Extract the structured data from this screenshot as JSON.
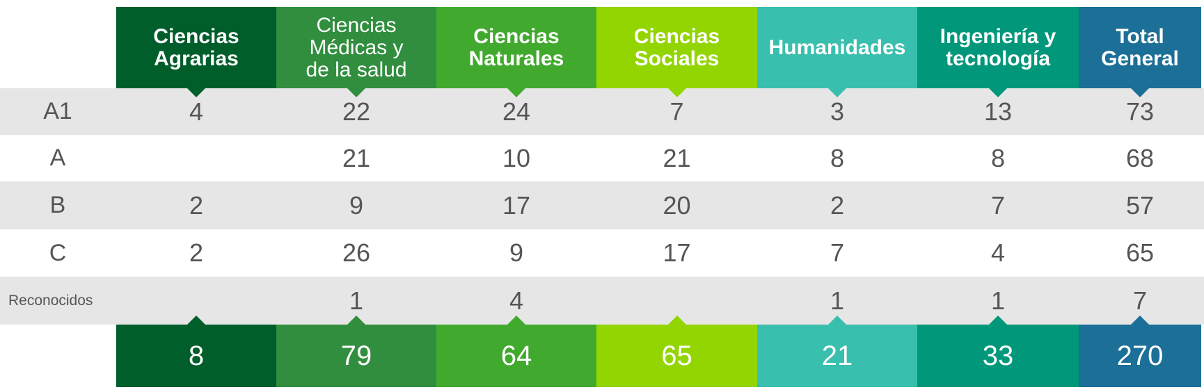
{
  "chart_data": {
    "type": "table",
    "columns": [
      {
        "label": "Ciencias\nAgrarias",
        "bold": true,
        "color": "#005e2b"
      },
      {
        "label": "Ciencias\nMédicas y\nde la salud",
        "bold": false,
        "color": "#318e3e"
      },
      {
        "label": "Ciencias\nNaturales",
        "bold": true,
        "color": "#41aa2e"
      },
      {
        "label": "Ciencias\nSociales",
        "bold": true,
        "color": "#93d500"
      },
      {
        "label": "Humanidades",
        "bold": true,
        "color": "#39bfae"
      },
      {
        "label": "Ingeniería y\ntecnología",
        "bold": true,
        "color": "#00977a"
      },
      {
        "label": "Total\nGeneral",
        "bold": true,
        "color": "#1c6f96"
      }
    ],
    "rows": [
      {
        "label": "A1",
        "values": [
          "4",
          "22",
          "24",
          "7",
          "3",
          "13",
          "73"
        ],
        "shaded": true
      },
      {
        "label": "A",
        "values": [
          "",
          "21",
          "10",
          "21",
          "8",
          "8",
          "68"
        ],
        "shaded": false
      },
      {
        "label": "B",
        "values": [
          "2",
          "9",
          "17",
          "20",
          "2",
          "7",
          "57"
        ],
        "shaded": true
      },
      {
        "label": "C",
        "values": [
          "2",
          "26",
          "9",
          "17",
          "7",
          "4",
          "65"
        ],
        "shaded": false
      },
      {
        "label": "Reconocidos",
        "values": [
          "",
          "1",
          "4",
          "",
          "1",
          "1",
          "7"
        ],
        "shaded": true
      }
    ],
    "totals": [
      "8",
      "79",
      "64",
      "65",
      "21",
      "33",
      "270"
    ]
  },
  "colors": {
    "row_shade": "#e6e6e6",
    "text": "#555555"
  }
}
